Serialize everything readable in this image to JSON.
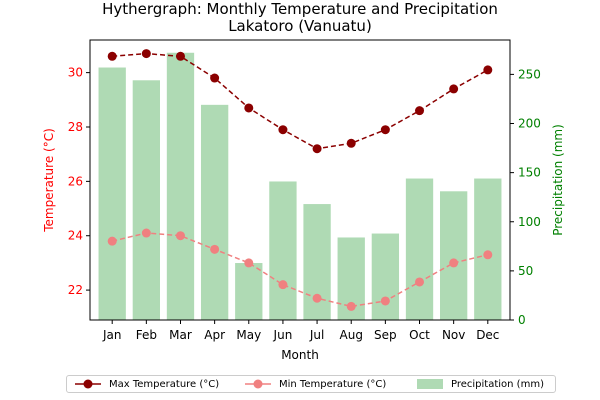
{
  "colors": {
    "max_temp": "#8b0000",
    "min_temp": "#f08080",
    "precip": "#2e9e3a",
    "left_axis": "#ff0000",
    "right_axis": "#008000"
  },
  "chart_data": {
    "type": "line+bar",
    "title_line1": "Hythergraph: Monthly Temperature and Precipitation",
    "title_line2": "Lakatoro (Vanuatu)",
    "xlabel": "Month",
    "ylabel_left": "Temperature (°C)",
    "ylabel_right": "Precipitation (mm)",
    "categories": [
      "Jan",
      "Feb",
      "Mar",
      "Apr",
      "May",
      "Jun",
      "Jul",
      "Aug",
      "Sep",
      "Oct",
      "Nov",
      "Dec"
    ],
    "ylim_left": [
      20.9,
      31.2
    ],
    "yticks_left": [
      22,
      24,
      26,
      28,
      30
    ],
    "ylim_right": [
      0,
      285
    ],
    "yticks_right": [
      0,
      50,
      100,
      150,
      200,
      250
    ],
    "series": [
      {
        "name": "Max Temperature (°C)",
        "type": "line",
        "axis": "left",
        "style": "dashed-circle",
        "values": [
          30.6,
          30.7,
          30.6,
          29.8,
          28.7,
          27.9,
          27.2,
          27.4,
          27.9,
          28.6,
          29.4,
          30.1
        ]
      },
      {
        "name": "Min Temperature (°C)",
        "type": "line",
        "axis": "left",
        "style": "dashed-circle",
        "values": [
          23.8,
          24.1,
          24.0,
          23.5,
          23.0,
          22.2,
          21.7,
          21.4,
          21.6,
          22.3,
          23.0,
          23.3
        ]
      },
      {
        "name": "Precipitation (mm)",
        "type": "bar",
        "axis": "right",
        "values": [
          257,
          244,
          272,
          219,
          58,
          141,
          118,
          84,
          88,
          144,
          131,
          144
        ]
      }
    ],
    "legend_position": "bottom-center",
    "grid": false
  }
}
